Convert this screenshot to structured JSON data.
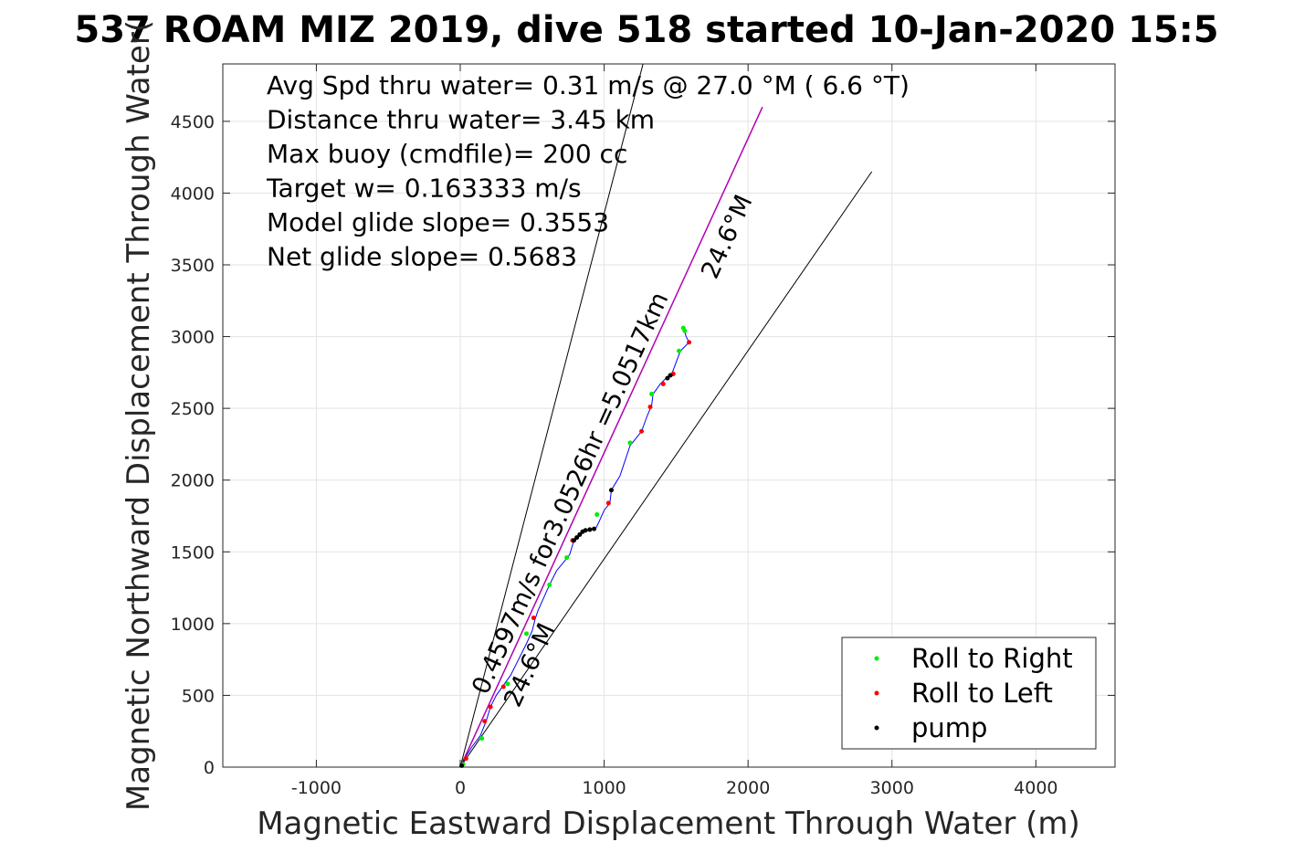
{
  "chart_data": {
    "type": "line",
    "title": "537 ROAM MIZ 2019, dive 518 started 10-Jan-2020 15:5",
    "xlabel": "Magnetic Eastward Displacement Through Water (m)",
    "ylabel": "Magnetic Northward Displacement Through Water(",
    "xlim": [
      -1650,
      4550
    ],
    "ylim": [
      0,
      4900
    ],
    "xticks": [
      -1000,
      0,
      1000,
      2000,
      3000,
      4000
    ],
    "yticks": [
      0,
      500,
      1000,
      1500,
      2000,
      2500,
      3000,
      3500,
      4000,
      4500
    ],
    "xtick_labels": [
      "-1000",
      "0",
      "1000",
      "2000",
      "3000",
      "4000"
    ],
    "ytick_labels": [
      "0",
      "500",
      "1000",
      "1500",
      "2000",
      "2500",
      "3000",
      "3500",
      "4000",
      "4500"
    ],
    "grid": true,
    "legend_position": "bottom-right",
    "annotations": [
      "Avg Spd thru water=  0.31 m/s @  27.0 °M (  6.6 °T)",
      "Distance thru water=  3.45 km",
      "Max buoy (cmdfile)= 200 cc",
      "Target w= 0.163333 m/s",
      "Model glide slope= 0.3553",
      "Net glide slope= 0.5683"
    ],
    "heading_line_label": "0.4597m/s for3.0526hr =5.0517km",
    "heading_label_far": "24.6°M",
    "heading_label_near": "24.6°M",
    "series": [
      {
        "name": "Roll to Right",
        "color": "#00ee00"
      },
      {
        "name": "Roll to Left",
        "color": "#ff0000"
      },
      {
        "name": "pump",
        "color": "#000000"
      }
    ],
    "track_color": "#0000ff",
    "heading_line_color": "#b000b0",
    "guide_color": "#000000",
    "guide_lines": [
      {
        "from": [
          0,
          0
        ],
        "to": [
          1270,
          4900
        ]
      },
      {
        "from": [
          0,
          0
        ],
        "to": [
          2860,
          4150
        ]
      }
    ],
    "heading_line": {
      "from": [
        0,
        0
      ],
      "to": [
        2100,
        4600
      ]
    },
    "track": [
      [
        0,
        0
      ],
      [
        30,
        60
      ],
      [
        80,
        140
      ],
      [
        140,
        220
      ],
      [
        180,
        320
      ],
      [
        210,
        420
      ],
      [
        250,
        500
      ],
      [
        300,
        570
      ],
      [
        350,
        640
      ],
      [
        410,
        760
      ],
      [
        460,
        860
      ],
      [
        500,
        950
      ],
      [
        520,
        1030
      ],
      [
        540,
        1090
      ],
      [
        580,
        1180
      ],
      [
        620,
        1270
      ],
      [
        670,
        1370
      ],
      [
        720,
        1430
      ],
      [
        760,
        1480
      ],
      [
        790,
        1580
      ],
      [
        830,
        1620
      ],
      [
        880,
        1650
      ],
      [
        940,
        1660
      ],
      [
        960,
        1700
      ],
      [
        1000,
        1790
      ],
      [
        1040,
        1840
      ],
      [
        1050,
        1930
      ],
      [
        1110,
        2030
      ],
      [
        1180,
        2240
      ],
      [
        1220,
        2290
      ],
      [
        1260,
        2340
      ],
      [
        1300,
        2450
      ],
      [
        1330,
        2520
      ],
      [
        1340,
        2600
      ],
      [
        1390,
        2670
      ],
      [
        1430,
        2710
      ],
      [
        1470,
        2740
      ],
      [
        1500,
        2820
      ],
      [
        1530,
        2900
      ],
      [
        1590,
        2960
      ],
      [
        1570,
        3000
      ],
      [
        1550,
        3060
      ]
    ],
    "roll_right_points": [
      [
        20,
        20
      ],
      [
        150,
        200
      ],
      [
        330,
        580
      ],
      [
        460,
        930
      ],
      [
        620,
        1270
      ],
      [
        740,
        1460
      ],
      [
        950,
        1760
      ],
      [
        1180,
        2260
      ],
      [
        1330,
        2600
      ],
      [
        1520,
        2900
      ],
      [
        1550,
        3060
      ],
      [
        1560,
        3040
      ]
    ],
    "roll_left_points": [
      [
        40,
        60
      ],
      [
        170,
        320
      ],
      [
        210,
        420
      ],
      [
        300,
        560
      ],
      [
        510,
        1040
      ],
      [
        780,
        1580
      ],
      [
        1030,
        1840
      ],
      [
        1260,
        2340
      ],
      [
        1320,
        2510
      ],
      [
        1410,
        2670
      ],
      [
        1480,
        2740
      ],
      [
        1590,
        2960
      ]
    ],
    "pump_points": [
      [
        10,
        10
      ],
      [
        790,
        1580
      ],
      [
        810,
        1600
      ],
      [
        830,
        1620
      ],
      [
        850,
        1640
      ],
      [
        870,
        1650
      ],
      [
        900,
        1655
      ],
      [
        930,
        1660
      ],
      [
        1050,
        1930
      ],
      [
        1440,
        2710
      ],
      [
        1460,
        2730
      ]
    ]
  }
}
